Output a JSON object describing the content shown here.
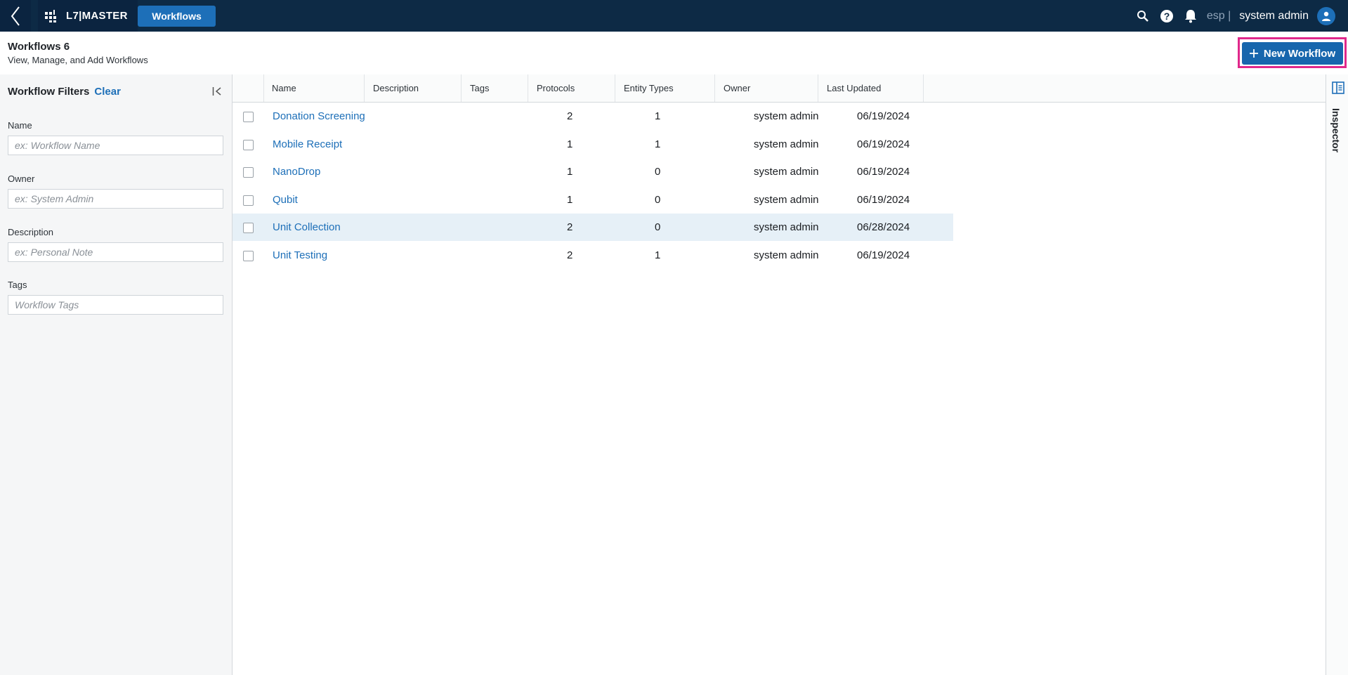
{
  "topbar": {
    "brand": "L7|MASTER",
    "nav_button": "Workflows",
    "lang": "esp |",
    "user": "system admin",
    "icons": [
      "back-chevron-icon",
      "brand-logo-icon",
      "search-icon",
      "help-icon",
      "bell-icon",
      "user-avatar-icon"
    ]
  },
  "header": {
    "title": "Workflows 6",
    "subtitle": "View, Manage, and Add Workflows",
    "new_button": "New Workflow"
  },
  "filters": {
    "title": "Workflow Filters",
    "clear": "Clear",
    "fields": [
      {
        "label": "Name",
        "placeholder": "ex: Workflow Name"
      },
      {
        "label": "Owner",
        "placeholder": "ex: System Admin"
      },
      {
        "label": "Description",
        "placeholder": "ex: Personal Note"
      },
      {
        "label": "Tags",
        "placeholder": "Workflow Tags"
      }
    ]
  },
  "table": {
    "columns": [
      "Name",
      "Description",
      "Tags",
      "Protocols",
      "Entity Types",
      "Owner",
      "Last Updated"
    ],
    "rows": [
      {
        "name": "Donation Screening",
        "description": "",
        "tags": "",
        "protocols": "2",
        "entity_types": "1",
        "owner": "system admin",
        "updated": "06/19/2024"
      },
      {
        "name": "Mobile Receipt",
        "description": "",
        "tags": "",
        "protocols": "1",
        "entity_types": "1",
        "owner": "system admin",
        "updated": "06/19/2024"
      },
      {
        "name": "NanoDrop",
        "description": "",
        "tags": "",
        "protocols": "1",
        "entity_types": "0",
        "owner": "system admin",
        "updated": "06/19/2024"
      },
      {
        "name": "Qubit",
        "description": "",
        "tags": "",
        "protocols": "1",
        "entity_types": "0",
        "owner": "system admin",
        "updated": "06/19/2024"
      },
      {
        "name": "Unit Collection",
        "description": "",
        "tags": "",
        "protocols": "2",
        "entity_types": "0",
        "owner": "system admin",
        "updated": "06/28/2024"
      },
      {
        "name": "Unit Testing",
        "description": "",
        "tags": "",
        "protocols": "2",
        "entity_types": "1",
        "owner": "system admin",
        "updated": "06/19/2024"
      }
    ],
    "highlighted_row": 4
  },
  "inspector": {
    "label": "Inspector"
  },
  "colors": {
    "topbar": "#0d2a45",
    "accent": "#1d6fb8",
    "highlight_outline": "#e0288b",
    "row_highlight": "#e6f0f7"
  }
}
